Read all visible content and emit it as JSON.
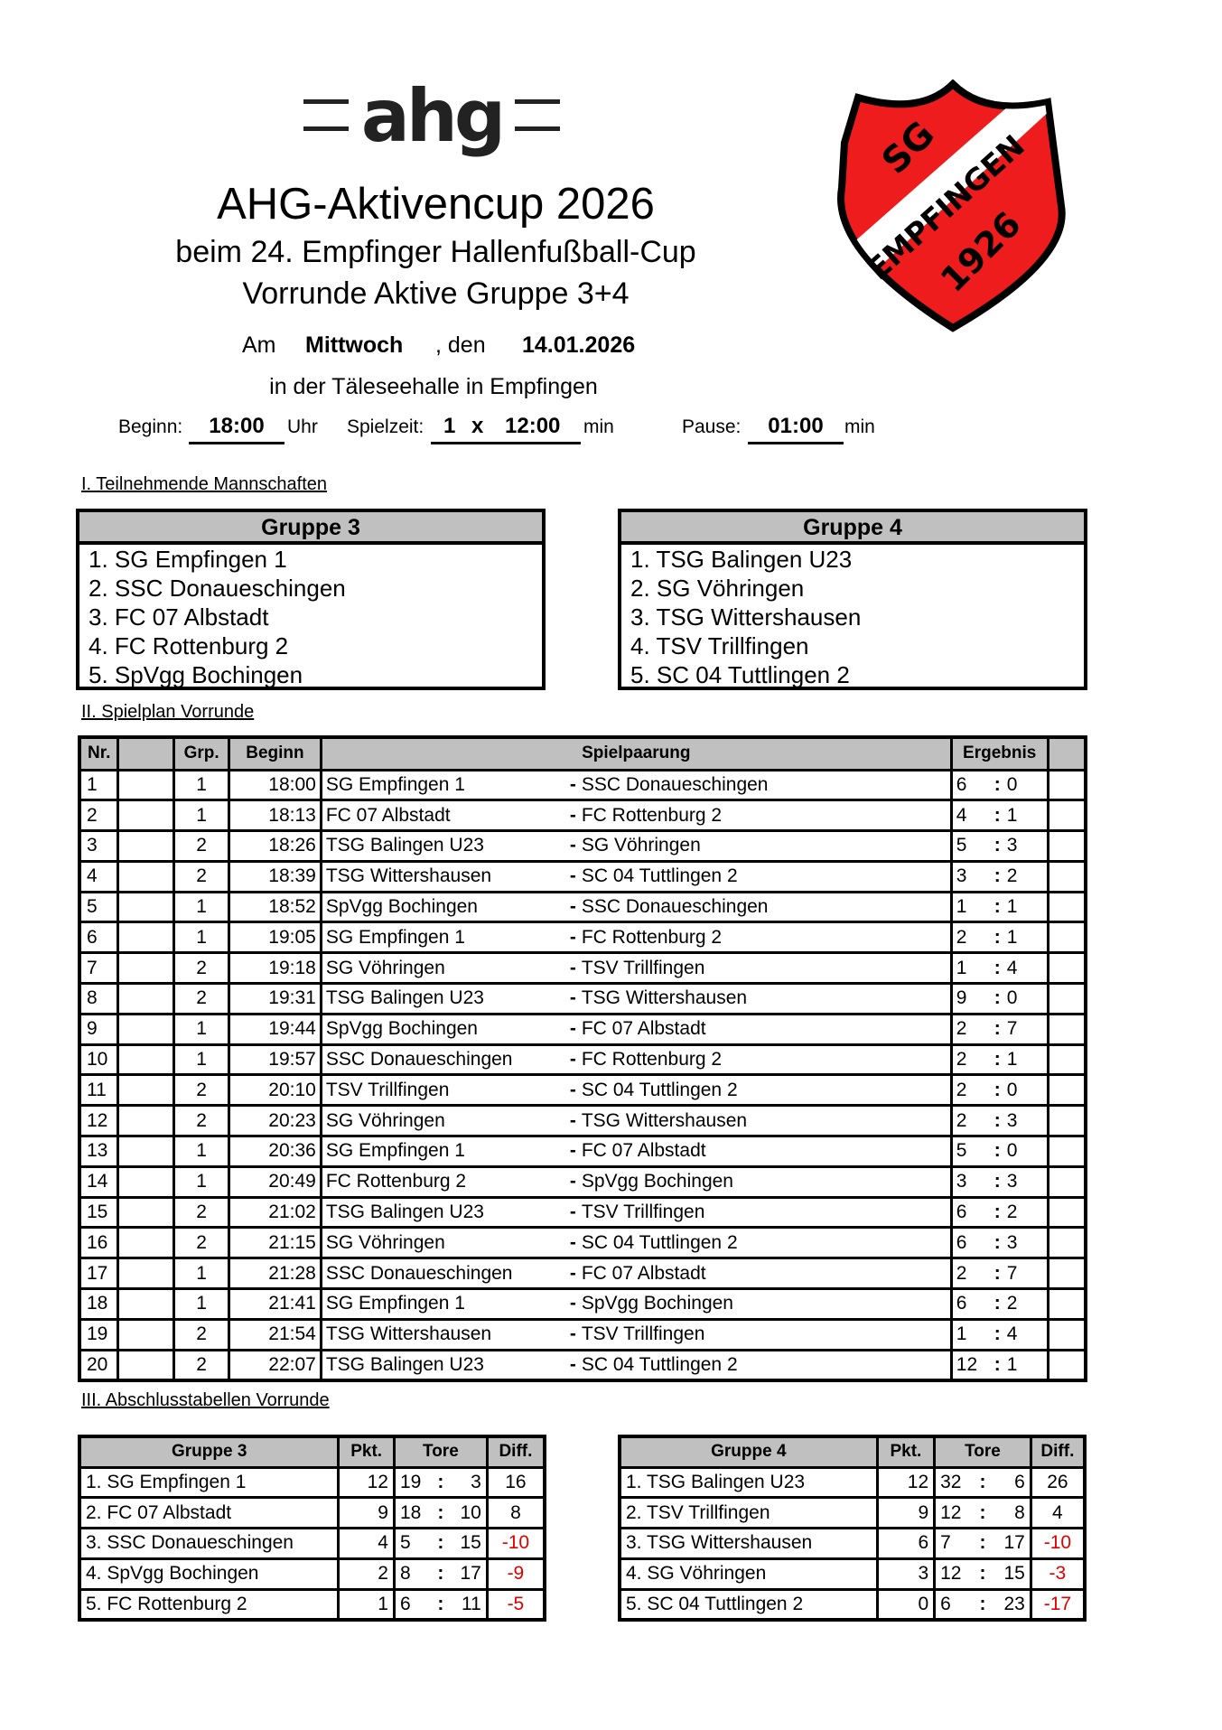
{
  "header": {
    "logo_text": "ahg",
    "title": "AHG-Aktivencup 2026",
    "subtitle1": "beim 24. Empfinger Hallenfußball-Cup",
    "subtitle2": "Vorrunde Aktive Gruppe 3+4",
    "am": "Am",
    "weekday": "Mittwoch",
    "den": ", den",
    "date": "14.01.2026",
    "venue": "in der Täleseehalle in Empfingen",
    "beginn_label": "Beginn:",
    "beginn": "18:00",
    "uhr": "Uhr",
    "spielzeit_label": "Spielzeit:",
    "halves": "1",
    "x": "x",
    "spielzeit": "12:00",
    "min": "min",
    "pause_label": "Pause:",
    "pause": "01:00",
    "crest_text": [
      "SG",
      "EMPFINGEN",
      "1926"
    ],
    "crest_color": "#ee1c1c"
  },
  "sections": {
    "teams": "I. Teilnehmende Mannschaften",
    "schedule": "II. Spielplan Vorrunde",
    "standings": "III. Abschlusstabellen Vorrunde"
  },
  "groups": [
    {
      "title": "Gruppe 3",
      "teams": [
        "1.  SG Empfingen 1",
        "2.  SSC Donaueschingen",
        "3.  FC 07 Albstadt",
        "4.  FC Rottenburg 2",
        "5.  SpVgg Bochingen"
      ]
    },
    {
      "title": "Gruppe 4",
      "teams": [
        "1.  TSG Balingen U23",
        "2.  SG Vöhringen",
        "3.  TSG Wittershausen",
        "4.  TSV Trillfingen",
        "5.  SC 04 Tuttlingen 2"
      ]
    }
  ],
  "schedule": {
    "headers": [
      "Nr.",
      "",
      "Grp.",
      "Beginn",
      "Spielpaarung",
      "Ergebnis",
      ""
    ],
    "rows": [
      [
        "1",
        "1",
        "18:00",
        "SG Empfingen 1",
        "SSC Donaueschingen",
        "6",
        "0"
      ],
      [
        "2",
        "1",
        "18:13",
        "FC 07 Albstadt",
        "FC Rottenburg 2",
        "4",
        "1"
      ],
      [
        "3",
        "2",
        "18:26",
        "TSG Balingen U23",
        "SG Vöhringen",
        "5",
        "3"
      ],
      [
        "4",
        "2",
        "18:39",
        "TSG Wittershausen",
        "SC 04 Tuttlingen 2",
        "3",
        "2"
      ],
      [
        "5",
        "1",
        "18:52",
        "SpVgg Bochingen",
        "SSC Donaueschingen",
        "1",
        "1"
      ],
      [
        "6",
        "1",
        "19:05",
        "SG Empfingen 1",
        "FC Rottenburg 2",
        "2",
        "1"
      ],
      [
        "7",
        "2",
        "19:18",
        "SG Vöhringen",
        "TSV Trillfingen",
        "1",
        "4"
      ],
      [
        "8",
        "2",
        "19:31",
        "TSG Balingen U23",
        "TSG Wittershausen",
        "9",
        "0"
      ],
      [
        "9",
        "1",
        "19:44",
        "SpVgg Bochingen",
        "FC 07 Albstadt",
        "2",
        "7"
      ],
      [
        "10",
        "1",
        "19:57",
        "SSC Donaueschingen",
        "FC Rottenburg 2",
        "2",
        "1"
      ],
      [
        "11",
        "2",
        "20:10",
        "TSV Trillfingen",
        "SC 04 Tuttlingen 2",
        "2",
        "0"
      ],
      [
        "12",
        "2",
        "20:23",
        "SG Vöhringen",
        "TSG Wittershausen",
        "2",
        "3"
      ],
      [
        "13",
        "1",
        "20:36",
        "SG Empfingen 1",
        "FC 07 Albstadt",
        "5",
        "0"
      ],
      [
        "14",
        "1",
        "20:49",
        "FC Rottenburg 2",
        "SpVgg Bochingen",
        "3",
        "3"
      ],
      [
        "15",
        "2",
        "21:02",
        "TSG Balingen U23",
        "TSV Trillfingen",
        "6",
        "2"
      ],
      [
        "16",
        "2",
        "21:15",
        "SG Vöhringen",
        "SC 04 Tuttlingen 2",
        "6",
        "3"
      ],
      [
        "17",
        "1",
        "21:28",
        "SSC Donaueschingen",
        "FC 07 Albstadt",
        "2",
        "7"
      ],
      [
        "18",
        "1",
        "21:41",
        "SG Empfingen 1",
        "SpVgg Bochingen",
        "6",
        "2"
      ],
      [
        "19",
        "2",
        "21:54",
        "TSG Wittershausen",
        "TSV Trillfingen",
        "1",
        "4"
      ],
      [
        "20",
        "2",
        "22:07",
        "TSG Balingen U23",
        "SC 04 Tuttlingen 2",
        "12",
        "1"
      ]
    ]
  },
  "standings": [
    {
      "headers": [
        "Gruppe 3",
        "Pkt.",
        "Tore",
        "Diff."
      ],
      "rows": [
        [
          "1.  SG Empfingen 1",
          "12",
          "19",
          "3",
          "16"
        ],
        [
          "2.  FC 07 Albstadt",
          "9",
          "18",
          "10",
          "8"
        ],
        [
          "3.  SSC Donaueschingen",
          "4",
          "5",
          "15",
          "-10"
        ],
        [
          "4.  SpVgg Bochingen",
          "2",
          "8",
          "17",
          "-9"
        ],
        [
          "5.  FC Rottenburg 2",
          "1",
          "6",
          "11",
          "-5"
        ]
      ]
    },
    {
      "headers": [
        "Gruppe 4",
        "Pkt.",
        "Tore",
        "Diff."
      ],
      "rows": [
        [
          "1.  TSG Balingen U23",
          "12",
          "32",
          "6",
          "26"
        ],
        [
          "2.  TSV Trillfingen",
          "9",
          "12",
          "8",
          "4"
        ],
        [
          "3.  TSG Wittershausen",
          "6",
          "7",
          "17",
          "-10"
        ],
        [
          "4.  SG Vöhringen",
          "3",
          "12",
          "15",
          "-3"
        ],
        [
          "5.  SC 04 Tuttlingen 2",
          "0",
          "6",
          "23",
          "-17"
        ]
      ]
    }
  ]
}
